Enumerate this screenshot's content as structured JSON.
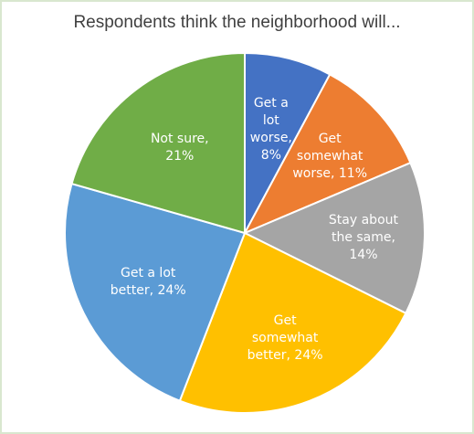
{
  "chart_data": {
    "type": "pie",
    "title": "Respondents think the neighborhood  will...",
    "slices": [
      {
        "label_lines": [
          "Get a",
          "lot",
          "worse,",
          "8%"
        ],
        "value": 8,
        "color": "#4472c4"
      },
      {
        "label_lines": [
          "Get",
          "somewhat",
          "worse, 11%"
        ],
        "value": 11,
        "color": "#ed7d31"
      },
      {
        "label_lines": [
          "Stay about",
          "the same,",
          "14%"
        ],
        "value": 14,
        "color": "#a5a5a5"
      },
      {
        "label_lines": [
          "Get",
          "somewhat",
          "better, 24%"
        ],
        "value": 24,
        "color": "#ffc000"
      },
      {
        "label_lines": [
          "Get a lot",
          "better, 24%"
        ],
        "value": 24,
        "color": "#5b9bd5"
      },
      {
        "label_lines": [
          "Not sure,",
          "21%"
        ],
        "value": 21,
        "color": "#70ad47"
      }
    ],
    "legend": "none"
  }
}
